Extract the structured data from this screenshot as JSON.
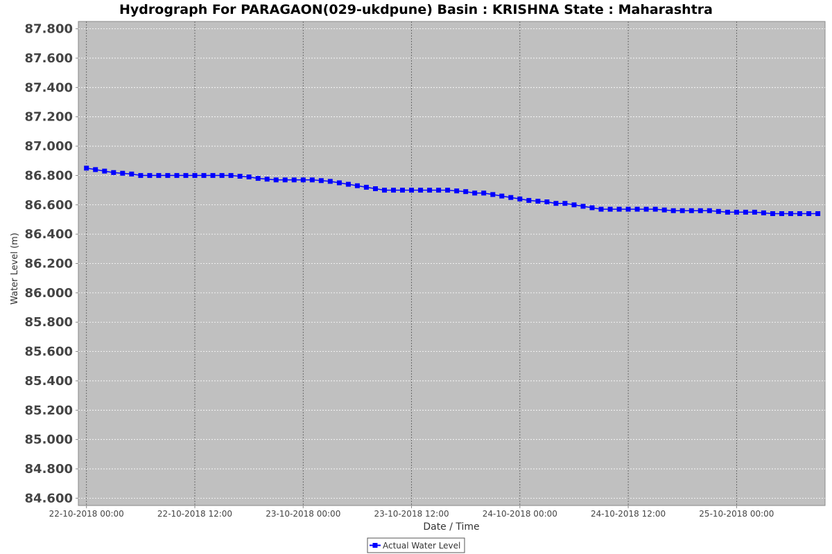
{
  "chart_data": {
    "type": "line",
    "title": "Hydrograph For PARAGAON(029-ukdpune) Basin : KRISHNA State : Maharashtra",
    "xlabel": "Date / Time",
    "ylabel": "Water Level (m)",
    "ylim": [
      84.55,
      87.85
    ],
    "xlim_hours": [
      -0.9,
      81.8
    ],
    "yticks": [
      "84.600",
      "84.800",
      "85.000",
      "85.200",
      "85.400",
      "85.600",
      "85.800",
      "86.000",
      "86.200",
      "86.400",
      "86.600",
      "86.800",
      "87.000",
      "87.200",
      "87.400",
      "87.600",
      "87.800"
    ],
    "xticks": [
      {
        "label": "22-10-2018 00:00",
        "hours": 0
      },
      {
        "label": "22-10-2018 12:00",
        "hours": 12
      },
      {
        "label": "23-10-2018 00:00",
        "hours": 24
      },
      {
        "label": "23-10-2018 12:00",
        "hours": 36
      },
      {
        "label": "24-10-2018 00:00",
        "hours": 48
      },
      {
        "label": "24-10-2018 12:00",
        "hours": 60
      },
      {
        "label": "25-10-2018 00:00",
        "hours": 72
      }
    ],
    "grid": true,
    "legend_position": "bottom-center",
    "series": [
      {
        "name": "Actual Water Level",
        "color": "#0000ff",
        "x_hours": [
          0,
          1,
          2,
          3,
          4,
          5,
          6,
          7,
          8,
          9,
          10,
          11,
          12,
          13,
          14,
          15,
          16,
          17,
          18,
          19,
          20,
          21,
          22,
          23,
          24,
          25,
          26,
          27,
          28,
          29,
          30,
          31,
          32,
          33,
          34,
          35,
          36,
          37,
          38,
          39,
          40,
          41,
          42,
          43,
          44,
          45,
          46,
          47,
          48,
          49,
          50,
          51,
          52,
          53,
          54,
          55,
          56,
          57,
          58,
          59,
          60,
          61,
          62,
          63,
          64,
          65,
          66,
          67,
          68,
          69,
          70,
          71,
          72,
          73,
          74,
          75,
          76,
          77,
          78,
          79,
          80,
          81
        ],
        "values": [
          86.85,
          86.84,
          86.83,
          86.82,
          86.815,
          86.81,
          86.8,
          86.8,
          86.8,
          86.8,
          86.8,
          86.8,
          86.8,
          86.8,
          86.8,
          86.8,
          86.8,
          86.795,
          86.79,
          86.78,
          86.775,
          86.77,
          86.77,
          86.77,
          86.77,
          86.77,
          86.765,
          86.76,
          86.75,
          86.74,
          86.73,
          86.72,
          86.71,
          86.7,
          86.7,
          86.7,
          86.7,
          86.7,
          86.7,
          86.7,
          86.7,
          86.695,
          86.69,
          86.68,
          86.68,
          86.67,
          86.66,
          86.65,
          86.64,
          86.63,
          86.625,
          86.62,
          86.61,
          86.61,
          86.6,
          86.59,
          86.58,
          86.57,
          86.57,
          86.57,
          86.57,
          86.57,
          86.57,
          86.57,
          86.565,
          86.56,
          86.56,
          86.56,
          86.56,
          86.56,
          86.555,
          86.55,
          86.55,
          86.55,
          86.55,
          86.545,
          86.54,
          86.54,
          86.54,
          86.54,
          86.54,
          86.54
        ]
      }
    ]
  },
  "colors": {
    "plot_background": "#c0c0c0",
    "series": "#0000ff",
    "grid": "#ffffff",
    "domain_grid": "#555555"
  }
}
